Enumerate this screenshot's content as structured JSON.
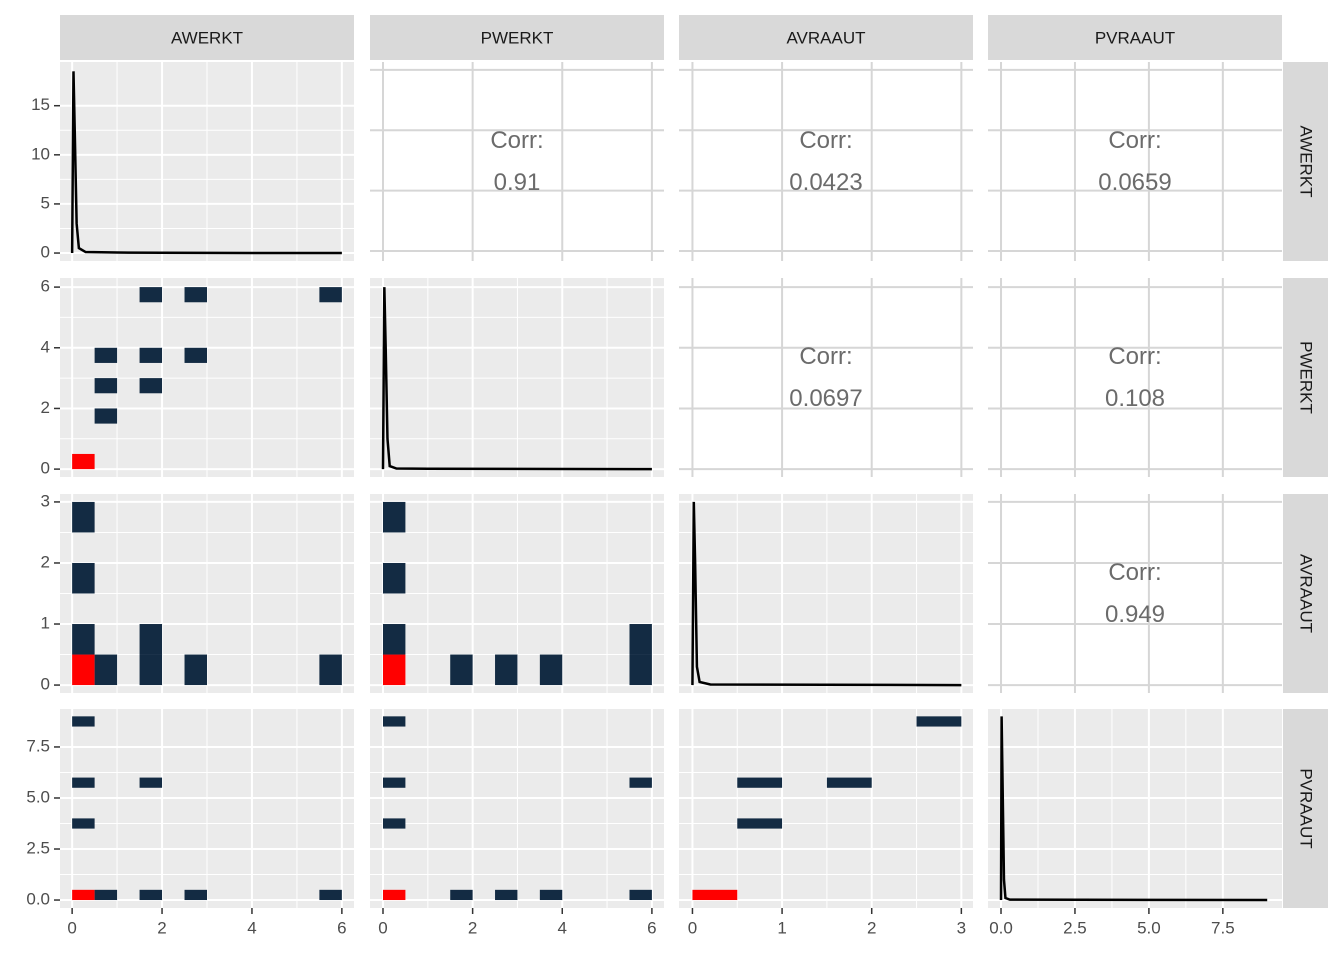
{
  "facets": {
    "columns": [
      "AWERKT",
      "PWERKT",
      "AVRAAUT",
      "PVRAAUT"
    ],
    "rows": [
      "AWERKT",
      "PWERKT",
      "AVRAAUT",
      "PVRAAUT"
    ]
  },
  "chart_data": [
    {
      "type": "density",
      "color": "#000000",
      "x": [
        0,
        0.03,
        0.06,
        0.1,
        0.15,
        0.3,
        1,
        2,
        3,
        4,
        5,
        6
      ],
      "values": [
        0,
        18.5,
        12,
        3,
        0.5,
        0.1,
        0.05,
        0.03,
        0.02,
        0.01,
        0.01,
        0
      ],
      "xlim": [
        -0.27,
        6.27
      ],
      "xticks": [
        0,
        2,
        4,
        6
      ],
      "ylim": [
        -0.81,
        19.45
      ],
      "yticks": [
        0,
        5,
        10,
        15
      ]
    },
    {
      "type": "corr",
      "label": "Corr:",
      "value": 0.91,
      "xlim": [
        -0.29,
        6.27
      ],
      "xticks": [
        0,
        2,
        4,
        6
      ],
      "ylim": [
        -0.33,
        6.26
      ],
      "yticks": [
        0,
        2,
        4,
        6
      ]
    },
    {
      "type": "corr",
      "label": "Corr:",
      "value": 0.0423,
      "xlim": [
        -0.15,
        3.13
      ],
      "xticks": [
        0,
        1,
        2,
        3
      ],
      "ylim": [
        -0.33,
        6.26
      ],
      "yticks": [
        0,
        2,
        4,
        6
      ]
    },
    {
      "type": "corr",
      "label": "Corr:",
      "value": 0.0659,
      "xlim": [
        -0.44,
        9.5
      ],
      "xticks": [
        {
          "value": 0,
          "label": "0.0"
        },
        {
          "value": 2.5,
          "label": "2.5"
        },
        {
          "value": 5,
          "label": "5.0"
        },
        {
          "value": 7.5,
          "label": "7.5"
        }
      ],
      "ylim": [
        -0.33,
        6.26
      ],
      "yticks": [
        0,
        2,
        4,
        6
      ]
    },
    {
      "type": "bin2d",
      "xlim": [
        -0.27,
        6.27
      ],
      "xticks": [
        0,
        2,
        4,
        6
      ],
      "ylim": [
        -0.26,
        6.3
      ],
      "yticks": [
        0,
        2,
        4,
        6
      ],
      "bins": [
        {
          "xmin": 0,
          "xmax": 0.5,
          "ymin": 0,
          "ymax": 0.5,
          "color": "#FF0000"
        },
        {
          "xmin": 0.5,
          "xmax": 1,
          "ymin": 1.5,
          "ymax": 2,
          "color": "#132B43"
        },
        {
          "xmin": 0.5,
          "xmax": 1,
          "ymin": 2.5,
          "ymax": 3,
          "color": "#132B43"
        },
        {
          "xmin": 0.5,
          "xmax": 1,
          "ymin": 3.5,
          "ymax": 4,
          "color": "#132B43"
        },
        {
          "xmin": 1.5,
          "xmax": 2,
          "ymin": 2.5,
          "ymax": 3,
          "color": "#132B43"
        },
        {
          "xmin": 1.5,
          "xmax": 2,
          "ymin": 3.5,
          "ymax": 4,
          "color": "#132B43"
        },
        {
          "xmin": 1.5,
          "xmax": 2,
          "ymin": 5.5,
          "ymax": 6,
          "color": "#132B43"
        },
        {
          "xmin": 2.5,
          "xmax": 3,
          "ymin": 3.5,
          "ymax": 4,
          "color": "#132B43"
        },
        {
          "xmin": 2.5,
          "xmax": 3,
          "ymin": 5.5,
          "ymax": 6,
          "color": "#132B43"
        },
        {
          "xmin": 5.5,
          "xmax": 6,
          "ymin": 5.5,
          "ymax": 6,
          "color": "#132B43"
        }
      ]
    },
    {
      "type": "density",
      "color": "#000000",
      "x": [
        0,
        0.03,
        0.06,
        0.1,
        0.15,
        0.3,
        1,
        6
      ],
      "values": [
        0,
        6,
        4,
        1,
        0.1,
        0.02,
        0.01,
        0
      ],
      "xlim": [
        -0.29,
        6.27
      ],
      "xticks": [
        0,
        2,
        4,
        6
      ],
      "ylim": [
        -0.26,
        6.3
      ],
      "yticks": [
        0,
        2,
        4,
        6
      ]
    },
    {
      "type": "corr",
      "label": "Corr:",
      "value": 0.0697,
      "xlim": [
        -0.15,
        3.13
      ],
      "xticks": [
        0,
        1,
        2,
        3
      ],
      "ylim": [
        -0.26,
        6.3
      ],
      "yticks": [
        0,
        2,
        4,
        6
      ]
    },
    {
      "type": "corr",
      "label": "Corr:",
      "value": 0.108,
      "xlim": [
        -0.44,
        9.5
      ],
      "xticks": [
        {
          "value": 0,
          "label": "0.0"
        },
        {
          "value": 2.5,
          "label": "2.5"
        },
        {
          "value": 5,
          "label": "5.0"
        },
        {
          "value": 7.5,
          "label": "7.5"
        }
      ],
      "ylim": [
        -0.26,
        6.3
      ],
      "yticks": [
        0,
        2,
        4,
        6
      ]
    },
    {
      "type": "bin2d",
      "xlim": [
        -0.27,
        6.27
      ],
      "xticks": [
        0,
        2,
        4,
        6
      ],
      "ylim": [
        -0.13,
        3.13
      ],
      "yticks": [
        0,
        1,
        2,
        3
      ],
      "bins": [
        {
          "xmin": 0,
          "xmax": 0.5,
          "ymin": 0,
          "ymax": 0.5,
          "color": "#FF0000"
        },
        {
          "xmin": 0,
          "xmax": 0.5,
          "ymin": 0.5,
          "ymax": 1,
          "color": "#132B43"
        },
        {
          "xmin": 0,
          "xmax": 0.5,
          "ymin": 1.5,
          "ymax": 2,
          "color": "#132B43"
        },
        {
          "xmin": 0,
          "xmax": 0.5,
          "ymin": 2.5,
          "ymax": 3,
          "color": "#132B43"
        },
        {
          "xmin": 0.5,
          "xmax": 1,
          "ymin": 0,
          "ymax": 0.5,
          "color": "#132B43"
        },
        {
          "xmin": 1.5,
          "xmax": 2,
          "ymin": 0,
          "ymax": 0.5,
          "color": "#132B43"
        },
        {
          "xmin": 1.5,
          "xmax": 2,
          "ymin": 0.5,
          "ymax": 1,
          "color": "#132B43"
        },
        {
          "xmin": 2.5,
          "xmax": 3,
          "ymin": 0,
          "ymax": 0.5,
          "color": "#132B43"
        },
        {
          "xmin": 5.5,
          "xmax": 6,
          "ymin": 0,
          "ymax": 0.5,
          "color": "#132B43"
        }
      ]
    },
    {
      "type": "bin2d",
      "xlim": [
        -0.29,
        6.27
      ],
      "xticks": [
        0,
        2,
        4,
        6
      ],
      "ylim": [
        -0.13,
        3.13
      ],
      "yticks": [
        0,
        1,
        2,
        3
      ],
      "bins": [
        {
          "xmin": 0,
          "xmax": 0.5,
          "ymin": 0,
          "ymax": 0.5,
          "color": "#FF0000"
        },
        {
          "xmin": 0,
          "xmax": 0.5,
          "ymin": 0.5,
          "ymax": 1,
          "color": "#132B43"
        },
        {
          "xmin": 0,
          "xmax": 0.5,
          "ymin": 1.5,
          "ymax": 2,
          "color": "#132B43"
        },
        {
          "xmin": 0,
          "xmax": 0.5,
          "ymin": 2.5,
          "ymax": 3,
          "color": "#132B43"
        },
        {
          "xmin": 1.5,
          "xmax": 2,
          "ymin": 0,
          "ymax": 0.5,
          "color": "#132B43"
        },
        {
          "xmin": 2.5,
          "xmax": 3,
          "ymin": 0,
          "ymax": 0.5,
          "color": "#132B43"
        },
        {
          "xmin": 3.5,
          "xmax": 4,
          "ymin": 0,
          "ymax": 0.5,
          "color": "#132B43"
        },
        {
          "xmin": 5.5,
          "xmax": 6,
          "ymin": 0,
          "ymax": 0.5,
          "color": "#132B43"
        },
        {
          "xmin": 5.5,
          "xmax": 6,
          "ymin": 0.5,
          "ymax": 1,
          "color": "#132B43"
        }
      ]
    },
    {
      "type": "density",
      "color": "#000000",
      "x": [
        0,
        0.015,
        0.03,
        0.05,
        0.08,
        0.2,
        3
      ],
      "values": [
        0,
        3,
        2,
        0.3,
        0.05,
        0.01,
        0
      ],
      "xlim": [
        -0.15,
        3.13
      ],
      "xticks": [
        0,
        1,
        2,
        3
      ],
      "ylim": [
        -0.13,
        3.13
      ],
      "yticks": [
        0,
        1,
        2,
        3
      ]
    },
    {
      "type": "corr",
      "label": "Corr:",
      "value": 0.949,
      "xlim": [
        -0.44,
        9.5
      ],
      "xticks": [
        {
          "value": 0,
          "label": "0.0"
        },
        {
          "value": 2.5,
          "label": "2.5"
        },
        {
          "value": 5,
          "label": "5.0"
        },
        {
          "value": 7.5,
          "label": "7.5"
        }
      ],
      "ylim": [
        -0.13,
        3.13
      ],
      "yticks": [
        0,
        1,
        2,
        3
      ]
    },
    {
      "type": "bin2d",
      "xlim": [
        -0.27,
        6.27
      ],
      "xticks": [
        0,
        2,
        4,
        6
      ],
      "ylim": [
        -0.39,
        9.36
      ],
      "yticks": [
        {
          "value": 0,
          "label": "0.0"
        },
        {
          "value": 2.5,
          "label": "2.5"
        },
        {
          "value": 5,
          "label": "5.0"
        },
        {
          "value": 7.5,
          "label": "7.5"
        }
      ],
      "bins": [
        {
          "xmin": 0,
          "xmax": 0.5,
          "ymin": 0,
          "ymax": 0.5,
          "color": "#FF0000"
        },
        {
          "xmin": 0.5,
          "xmax": 1,
          "ymin": 0,
          "ymax": 0.5,
          "color": "#132B43"
        },
        {
          "xmin": 1.5,
          "xmax": 2,
          "ymin": 0,
          "ymax": 0.5,
          "color": "#132B43"
        },
        {
          "xmin": 2.5,
          "xmax": 3,
          "ymin": 0,
          "ymax": 0.5,
          "color": "#132B43"
        },
        {
          "xmin": 5.5,
          "xmax": 6,
          "ymin": 0,
          "ymax": 0.5,
          "color": "#132B43"
        },
        {
          "xmin": 0,
          "xmax": 0.5,
          "ymin": 3.5,
          "ymax": 4,
          "color": "#132B43"
        },
        {
          "xmin": 0,
          "xmax": 0.5,
          "ymin": 5.5,
          "ymax": 6,
          "color": "#132B43"
        },
        {
          "xmin": 1.5,
          "xmax": 2,
          "ymin": 5.5,
          "ymax": 6,
          "color": "#132B43"
        },
        {
          "xmin": 0,
          "xmax": 0.5,
          "ymin": 8.5,
          "ymax": 9,
          "color": "#132B43"
        }
      ]
    },
    {
      "type": "bin2d",
      "xlim": [
        -0.29,
        6.27
      ],
      "xticks": [
        0,
        2,
        4,
        6
      ],
      "ylim": [
        -0.39,
        9.36
      ],
      "yticks": [
        {
          "value": 0,
          "label": "0.0"
        },
        {
          "value": 2.5,
          "label": "2.5"
        },
        {
          "value": 5,
          "label": "5.0"
        },
        {
          "value": 7.5,
          "label": "7.5"
        }
      ],
      "bins": [
        {
          "xmin": 0,
          "xmax": 0.5,
          "ymin": 0,
          "ymax": 0.5,
          "color": "#FF0000"
        },
        {
          "xmin": 1.5,
          "xmax": 2,
          "ymin": 0,
          "ymax": 0.5,
          "color": "#132B43"
        },
        {
          "xmin": 2.5,
          "xmax": 3,
          "ymin": 0,
          "ymax": 0.5,
          "color": "#132B43"
        },
        {
          "xmin": 3.5,
          "xmax": 4,
          "ymin": 0,
          "ymax": 0.5,
          "color": "#132B43"
        },
        {
          "xmin": 5.5,
          "xmax": 6,
          "ymin": 0,
          "ymax": 0.5,
          "color": "#132B43"
        },
        {
          "xmin": 0,
          "xmax": 0.5,
          "ymin": 3.5,
          "ymax": 4,
          "color": "#132B43"
        },
        {
          "xmin": 0,
          "xmax": 0.5,
          "ymin": 5.5,
          "ymax": 6,
          "color": "#132B43"
        },
        {
          "xmin": 5.5,
          "xmax": 6,
          "ymin": 5.5,
          "ymax": 6,
          "color": "#132B43"
        },
        {
          "xmin": 0,
          "xmax": 0.5,
          "ymin": 8.5,
          "ymax": 9,
          "color": "#132B43"
        }
      ]
    },
    {
      "type": "bin2d",
      "xlim": [
        -0.15,
        3.13
      ],
      "xticks": [
        0,
        1,
        2,
        3
      ],
      "ylim": [
        -0.39,
        9.36
      ],
      "yticks": [
        {
          "value": 0,
          "label": "0.0"
        },
        {
          "value": 2.5,
          "label": "2.5"
        },
        {
          "value": 5,
          "label": "5.0"
        },
        {
          "value": 7.5,
          "label": "7.5"
        }
      ],
      "bins": [
        {
          "xmin": 0,
          "xmax": 0.5,
          "ymin": 0,
          "ymax": 0.5,
          "color": "#FF0000"
        },
        {
          "xmin": 0.5,
          "xmax": 1,
          "ymin": 3.5,
          "ymax": 4,
          "color": "#132B43"
        },
        {
          "xmin": 0.5,
          "xmax": 1,
          "ymin": 5.5,
          "ymax": 6,
          "color": "#132B43"
        },
        {
          "xmin": 1.5,
          "xmax": 2,
          "ymin": 5.5,
          "ymax": 6,
          "color": "#132B43"
        },
        {
          "xmin": 2.5,
          "xmax": 3,
          "ymin": 8.5,
          "ymax": 9,
          "color": "#132B43"
        }
      ]
    },
    {
      "type": "density",
      "color": "#000000",
      "x": [
        0,
        0.02,
        0.05,
        0.1,
        0.15,
        0.3,
        9
      ],
      "values": [
        0,
        9,
        6,
        1,
        0.1,
        0.02,
        0
      ],
      "xlim": [
        -0.44,
        9.5
      ],
      "xticks": [
        {
          "value": 0,
          "label": "0.0"
        },
        {
          "value": 2.5,
          "label": "2.5"
        },
        {
          "value": 5,
          "label": "5.0"
        },
        {
          "value": 7.5,
          "label": "7.5"
        }
      ],
      "ylim": [
        -0.39,
        9.36
      ],
      "yticks": [
        {
          "value": 0,
          "label": "0.0"
        },
        {
          "value": 2.5,
          "label": "2.5"
        },
        {
          "value": 5,
          "label": "5.0"
        },
        {
          "value": 7.5,
          "label": "7.5"
        }
      ]
    }
  ]
}
